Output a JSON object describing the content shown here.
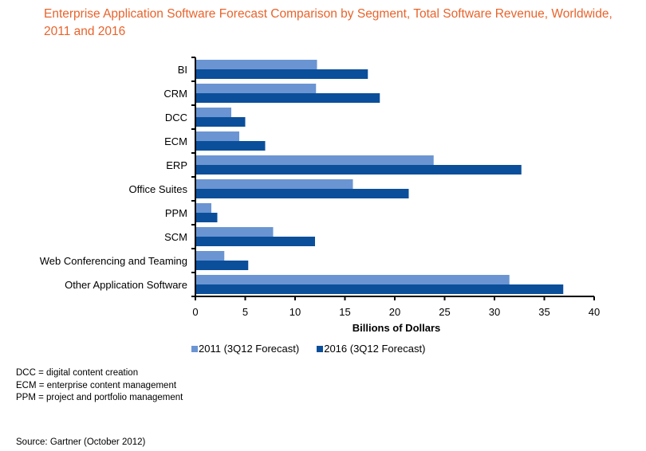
{
  "chart_data": {
    "type": "bar",
    "orientation": "horizontal",
    "title": "Enterprise Application Software Forecast Comparison by Segment, Total Software Revenue, Worldwide, 2011 and 2016",
    "xlabel": "Billions of Dollars",
    "ylabel": "",
    "xlim": [
      0,
      40
    ],
    "xticks": [
      0,
      5,
      10,
      15,
      20,
      25,
      30,
      35,
      40
    ],
    "grid": false,
    "legend_position": "bottom",
    "categories": [
      "BI",
      "CRM",
      "DCC",
      "ECM",
      "ERP",
      "Office Suites",
      "PPM",
      "SCM",
      "Web Conferencing and Teaming",
      "Other Application Software"
    ],
    "series": [
      {
        "name": "2011 (3Q12 Forecast)",
        "color": "#6a95d2",
        "values": [
          12.2,
          12.1,
          3.6,
          4.4,
          23.9,
          15.8,
          1.6,
          7.8,
          2.9,
          31.5
        ]
      },
      {
        "name": "2016 (3Q12 Forecast)",
        "color": "#0b4f9b",
        "values": [
          17.3,
          18.5,
          5.0,
          7.0,
          32.7,
          21.4,
          2.2,
          12.0,
          5.3,
          36.9
        ]
      }
    ]
  },
  "notes": [
    "DCC = digital content creation",
    "ECM = enterprise content management",
    "PPM = project and portfolio management"
  ],
  "source": "Source: Gartner (October 2012)"
}
